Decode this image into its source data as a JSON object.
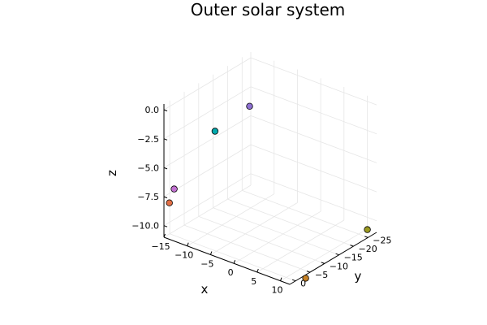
{
  "chart_data": {
    "type": "scatter",
    "title": "Outer solar system",
    "xlabel": "x",
    "ylabel": "y",
    "zlabel": "z",
    "xlim": [
      -15,
      12
    ],
    "ylim": [
      -28,
      2
    ],
    "zlim": [
      -11,
      0.5
    ],
    "x_ticks": [
      -15,
      -10,
      -5,
      0,
      5,
      10
    ],
    "y_ticks": [
      -25,
      -20,
      -15,
      -10,
      -5,
      0
    ],
    "z_ticks": [
      -10.0,
      -7.5,
      -5.0,
      -2.5,
      0.0
    ],
    "x_tick_labels": [
      "−15",
      "−10",
      "−5",
      "0",
      "5",
      "10"
    ],
    "y_tick_labels": [
      "−25",
      "−20",
      "−15",
      "−10",
      "−5",
      "0"
    ],
    "z_tick_labels": [
      "−10.0",
      "−7.5",
      "−5.0",
      "−2.5",
      "0.0"
    ],
    "grid": true,
    "legend": "none",
    "points": [
      {
        "x": -14.2,
        "y": 1.4,
        "z": -8.0,
        "color": "#e26f46"
      },
      {
        "x": -15.6,
        "y": -2.5,
        "z": -7.6,
        "color": "#c271d2"
      },
      {
        "x": -6.1,
        "y": -1.3,
        "z": -1.0,
        "color": "#00a9ad"
      },
      {
        "x": -12.9,
        "y": -24.2,
        "z": -3.3,
        "color": "#8e71d2"
      },
      {
        "x": 10.7,
        "y": -5.6,
        "z": -11.8,
        "color": "#c68125"
      },
      {
        "x": 11.7,
        "y": -25.3,
        "z": -10.4,
        "color": "#9b9a22"
      }
    ]
  }
}
